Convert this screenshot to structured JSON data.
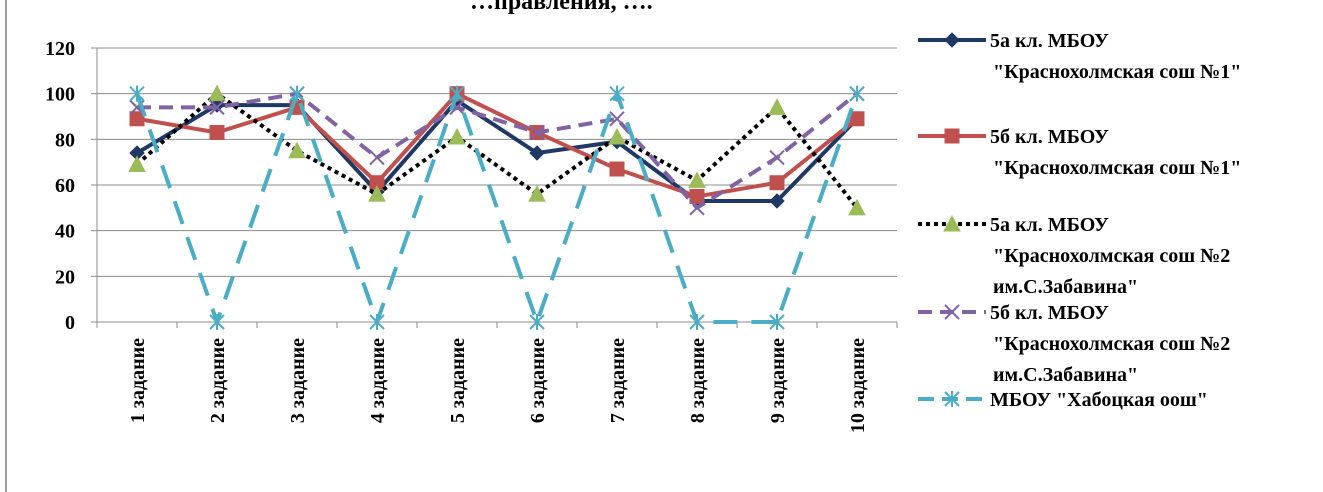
{
  "chart_data": {
    "type": "line",
    "title": "…правления, ….",
    "categories": [
      "1 задание",
      "2 задание",
      "3 задание",
      "4 задание",
      "5 задание",
      "6 задание",
      "7 задание",
      "8 задание",
      "9 задание",
      "10 задание"
    ],
    "ylim": [
      0,
      120
    ],
    "yticks": [
      0,
      20,
      40,
      60,
      80,
      100,
      120
    ],
    "grid": true,
    "legend_position": "right",
    "series": [
      {
        "name_lines": [
          "5а кл. МБОУ",
          "\"Краснохолмская сош №1\""
        ],
        "values": [
          74,
          95,
          95,
          57,
          97,
          74,
          79,
          53,
          53,
          89
        ],
        "color": "#1F3864",
        "dash": "solid",
        "marker": "diamond"
      },
      {
        "name_lines": [
          "5б кл. МБОУ",
          "\"Краснохолмская сош №1\""
        ],
        "values": [
          89,
          83,
          94,
          61,
          100,
          83,
          67,
          55,
          61,
          89
        ],
        "color": "#C0504D",
        "dash": "solid",
        "marker": "square"
      },
      {
        "name_lines": [
          "5а кл. МБОУ",
          "\"Краснохолмская сош №2",
          "им.С.Забавина\""
        ],
        "values": [
          69,
          100,
          75,
          56,
          81,
          56,
          81,
          62,
          94,
          50
        ],
        "color": "#000000",
        "dash": "dotted",
        "marker": "triangle",
        "marker_color": "#9BBB59"
      },
      {
        "name_lines": [
          "5б кл. МБОУ",
          "\"Краснохолмская сош №2",
          "им.С.Забавина\""
        ],
        "values": [
          94,
          94,
          100,
          72,
          94,
          83,
          89,
          50,
          72,
          100
        ],
        "color": "#8064A2",
        "dash": "dashed",
        "marker": "x"
      },
      {
        "name_lines": [
          "МБОУ \"Хабоцкая оош\""
        ],
        "values": [
          100,
          0,
          100,
          0,
          100,
          0,
          100,
          0,
          0,
          100
        ],
        "color": "#4BACC6",
        "dash": "longdash",
        "marker": "star"
      }
    ]
  }
}
